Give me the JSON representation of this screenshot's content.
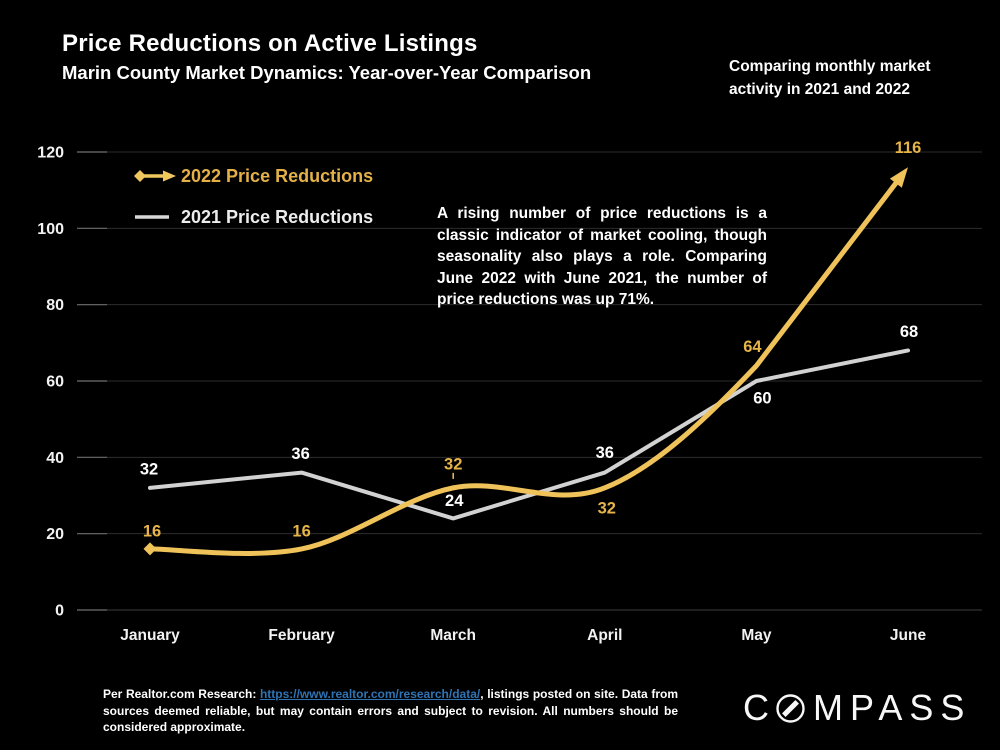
{
  "slide": {
    "title": "Price Reductions on Active Listings",
    "subtitle": "Marin County Market Dynamics: Year-over-Year Comparison",
    "note": "Comparing monthly market activity in 2021 and 2022"
  },
  "legend": [
    {
      "label": "2022 Price Reductions",
      "text_color": "#E3B148",
      "marker_color": "#F0C75F",
      "marker": "diamond-arrow"
    },
    {
      "label": "2021 Price Reductions",
      "text_color": "#EDEDED",
      "marker_color": "#D8D8D8",
      "marker": "line"
    }
  ],
  "annotation": "A rising number of price reductions is a classic indicator of market cooling, though seasonality also plays a role. Comparing June 2022 with June 2021, the number of price reductions was up 71%.",
  "chart_data": {
    "type": "line",
    "title": "Price Reductions on Active Listings",
    "categories": [
      "January",
      "February",
      "March",
      "April",
      "May",
      "June"
    ],
    "series": [
      {
        "name": "2021 Price Reductions",
        "values": [
          32,
          36,
          24,
          36,
          60,
          68
        ],
        "color": "#D2D2D2",
        "label_color": "#FFFFFF",
        "style": "straight",
        "label_offsets": [
          {
            "dx": -1,
            "dy": -19
          },
          {
            "dx": -1,
            "dy": -19
          },
          {
            "dx": 1,
            "dy": -18
          },
          {
            "dx": 0,
            "dy": -20
          },
          {
            "dx": 6,
            "dy": 17
          },
          {
            "dx": 1,
            "dy": -19
          }
        ]
      },
      {
        "name": "2022 Price Reductions",
        "values": [
          16,
          16,
          32,
          32,
          64,
          116
        ],
        "color": "#EFC25A",
        "label_color": "#E6B54A",
        "style": "smooth",
        "start_marker": "diamond",
        "end_marker": "arrow",
        "label_offsets": [
          {
            "dx": 2,
            "dy": -18
          },
          {
            "dx": 0,
            "dy": -18
          },
          {
            "dx": 0,
            "dy": -24,
            "leader": true
          },
          {
            "dx": 2,
            "dy": 20
          },
          {
            "dx": -4,
            "dy": -19
          },
          {
            "dx": 0,
            "dy": -20
          }
        ]
      }
    ],
    "ylim": [
      0,
      120
    ],
    "ytick_step": 20,
    "grid": true,
    "legend_position": "top-left",
    "axis_text_color": "#F2F2F2",
    "gridline_color": "#2D2D2D",
    "baseline_color": "#3E3E3E",
    "tick_color": "#6F6F6F"
  },
  "footer": {
    "prefix": "Per Realtor.com Research: ",
    "link": "https://www.realtor.com/research/data/",
    "suffix": ", listings posted on site. Data from sources deemed reliable, but may contain errors and subject to revision. All numbers should be considered approximate.",
    "link_color": "#2E74B5"
  },
  "logo": {
    "left_letters": "C",
    "right_letters": "MPASS",
    "name": "COMPASS"
  }
}
